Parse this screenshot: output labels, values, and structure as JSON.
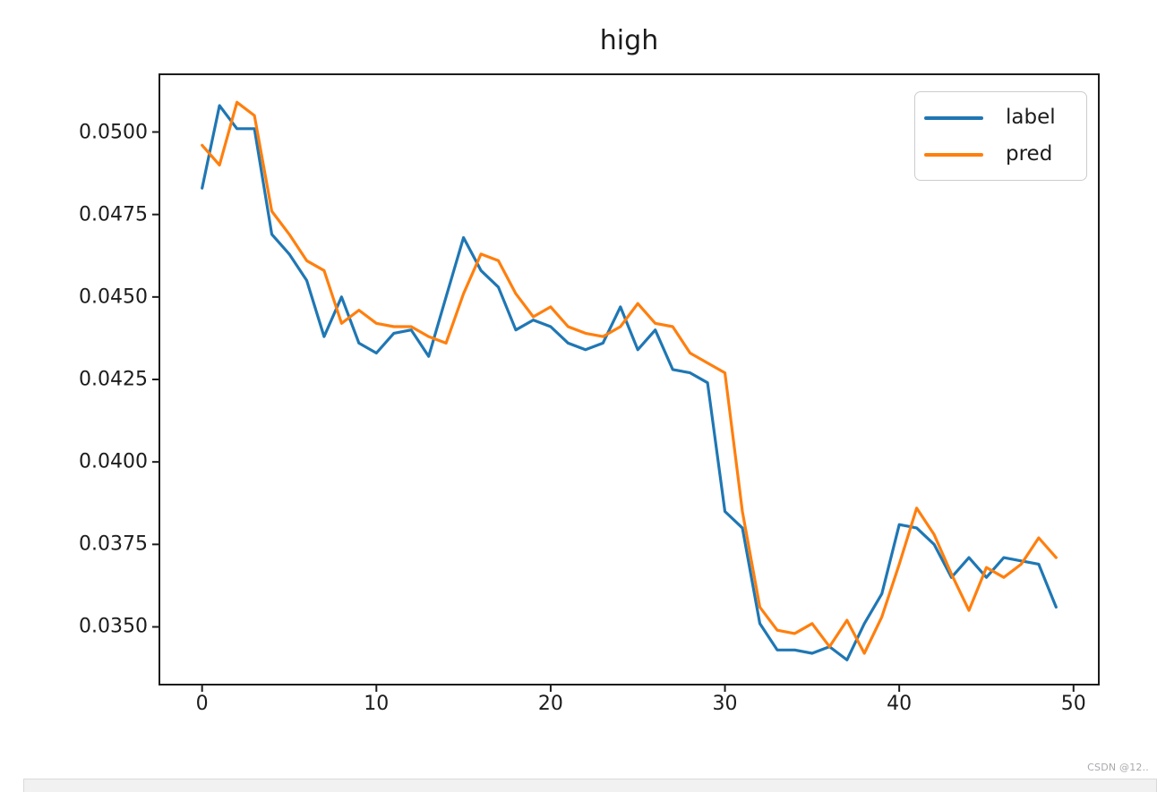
{
  "figure": {
    "title": "high"
  },
  "watermark": {
    "text": "CSDN @12.."
  },
  "chart_data": {
    "type": "line",
    "title": "high",
    "xlabel": "",
    "ylabel": "",
    "grid": false,
    "legend_position": "upper right",
    "xlim": [
      -2.45,
      51.45
    ],
    "ylim": [
      0.03325,
      0.05175
    ],
    "x_ticks": [
      0,
      10,
      20,
      30,
      40,
      50
    ],
    "y_ticks": [
      0.035,
      0.0375,
      0.04,
      0.0425,
      0.045,
      0.0475,
      0.05
    ],
    "y_tick_labels": [
      "0.0350",
      "0.0375",
      "0.0400",
      "0.0425",
      "0.0450",
      "0.0475",
      "0.0500"
    ],
    "x": [
      0,
      1,
      2,
      3,
      4,
      5,
      6,
      7,
      8,
      9,
      10,
      11,
      12,
      13,
      14,
      15,
      16,
      17,
      18,
      19,
      20,
      21,
      22,
      23,
      24,
      25,
      26,
      27,
      28,
      29,
      30,
      31,
      32,
      33,
      34,
      35,
      36,
      37,
      38,
      39,
      40,
      41,
      42,
      43,
      44,
      45,
      46,
      47,
      48,
      49
    ],
    "series": [
      {
        "name": "label",
        "color": "#1f77b4",
        "values": [
          0.0483,
          0.0508,
          0.0501,
          0.0501,
          0.0469,
          0.0463,
          0.0455,
          0.0438,
          0.045,
          0.0436,
          0.0433,
          0.0439,
          0.044,
          0.0432,
          0.045,
          0.0468,
          0.0458,
          0.0453,
          0.044,
          0.0443,
          0.0441,
          0.0436,
          0.0434,
          0.0436,
          0.0447,
          0.0434,
          0.044,
          0.0428,
          0.0427,
          0.0424,
          0.0385,
          0.038,
          0.0351,
          0.0343,
          0.0343,
          0.0342,
          0.0344,
          0.034,
          0.0351,
          0.036,
          0.0381,
          0.038,
          0.0375,
          0.0365,
          0.0371,
          0.0365,
          0.0371,
          0.037,
          0.0369,
          0.0356
        ]
      },
      {
        "name": "pred",
        "color": "#ff7f0e",
        "values": [
          0.0496,
          0.049,
          0.0509,
          0.0505,
          0.0476,
          0.0469,
          0.0461,
          0.0458,
          0.0442,
          0.0446,
          0.0442,
          0.0441,
          0.0441,
          0.0438,
          0.0436,
          0.0451,
          0.0463,
          0.0461,
          0.0451,
          0.0444,
          0.0447,
          0.0441,
          0.0439,
          0.0438,
          0.0441,
          0.0448,
          0.0442,
          0.0441,
          0.0433,
          0.043,
          0.0427,
          0.0385,
          0.0356,
          0.0349,
          0.0348,
          0.0351,
          0.0344,
          0.0352,
          0.0342,
          0.0353,
          0.0369,
          0.0386,
          0.0378,
          0.0366,
          0.0355,
          0.0368,
          0.0365,
          0.0369,
          0.0377,
          0.0371
        ]
      }
    ]
  }
}
